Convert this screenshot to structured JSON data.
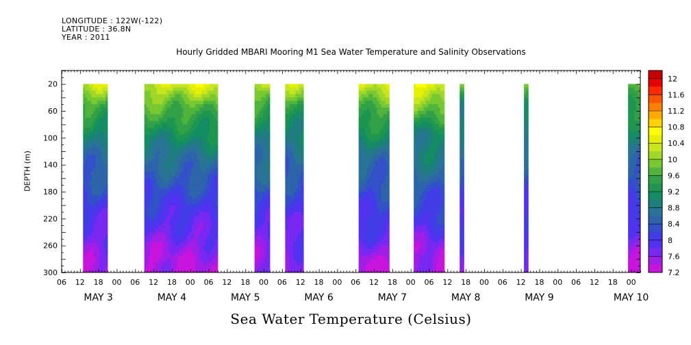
{
  "header": {
    "longitude": "LONGITUDE : 122W(-122)",
    "latitude": "LATITUDE : 36.8N",
    "year": "YEAR : 2011"
  },
  "chart_data": {
    "type": "heatmap",
    "title": "Hourly Gridded MBARI Mooring M1 Sea Water Temperature and Salinity Observations",
    "xlabel": "Sea Water Temperature (Celsius)",
    "ylabel": "DEPTH (m)",
    "x_range_hours": [
      0,
      189
    ],
    "x_hour_ticks": [
      "06",
      "12",
      "18",
      "00",
      "06",
      "12",
      "18",
      "00",
      "06",
      "12",
      "18",
      "00",
      "06",
      "12",
      "18",
      "00",
      "06",
      "12",
      "18",
      "00",
      "06",
      "12",
      "18",
      "00",
      "06",
      "12",
      "18",
      "00",
      "06",
      "12",
      "18",
      "00"
    ],
    "x_day_labels": [
      "MAY 3",
      "MAY 4",
      "MAY 5",
      "MAY 6",
      "MAY 7",
      "MAY 8",
      "MAY 9",
      "MAY 10"
    ],
    "y_range": [
      0,
      300
    ],
    "y_ticks": [
      20,
      60,
      100,
      140,
      180,
      220,
      260,
      300
    ],
    "colorbar": {
      "ticks": [
        "12",
        "11.6",
        "11.2",
        "10.8",
        "10.4",
        "10",
        "9.6",
        "9.2",
        "8.8",
        "8.4",
        "8",
        "7.6",
        "7.2"
      ],
      "colors": [
        "#c80000",
        "#e60000",
        "#ff2a00",
        "#ff5500",
        "#ff7f00",
        "#ffaa00",
        "#ffd200",
        "#ffff00",
        "#e6f000",
        "#c8e61e",
        "#a0d728",
        "#78c832",
        "#50b43c",
        "#32a046",
        "#1e9650",
        "#148c64",
        "#1e7d7d",
        "#287396",
        "#2d64aa",
        "#3250c8",
        "#413ce6",
        "#5032f0",
        "#7828f0",
        "#a01ee6",
        "#c814dc"
      ]
    },
    "segments": [
      {
        "x": [
          7,
          15
        ],
        "profile": [
          10.2,
          9.5,
          9.0,
          8.6,
          8.3,
          8.1,
          7.8,
          7.6,
          7.5
        ]
      },
      {
        "x": [
          27,
          51
        ],
        "profile": [
          10.3,
          9.6,
          9.1,
          8.7,
          8.35,
          8.1,
          7.8,
          7.55,
          7.4
        ]
      },
      {
        "x": [
          63,
          68
        ],
        "profile": [
          10.0,
          9.4,
          9.0,
          8.7,
          8.4,
          8.1,
          7.85,
          7.6,
          7.5
        ]
      },
      {
        "x": [
          73,
          79
        ],
        "profile": [
          10.1,
          9.4,
          8.95,
          8.6,
          8.3,
          8.05,
          7.85,
          7.7,
          7.6
        ]
      },
      {
        "x": [
          97,
          107
        ],
        "profile": [
          10.2,
          9.6,
          9.1,
          8.65,
          8.35,
          8.15,
          8.0,
          7.6,
          7.3
        ]
      },
      {
        "x": [
          115,
          125
        ],
        "profile": [
          10.5,
          9.7,
          9.0,
          8.8,
          8.5,
          8.2,
          7.9,
          7.55,
          7.4
        ]
      },
      {
        "x": [
          130,
          131.4
        ],
        "profile": [
          9.8,
          9.0,
          8.7,
          8.5,
          8.3,
          8.1,
          7.9,
          7.7,
          7.6
        ]
      },
      {
        "x": [
          151,
          152.4
        ],
        "profile": [
          10.0,
          9.1,
          8.8,
          8.5,
          8.3,
          8.1,
          7.9,
          7.7,
          7.6
        ]
      },
      {
        "x": [
          185,
          189
        ],
        "profile": [
          9.8,
          9.3,
          8.9,
          8.6,
          8.4,
          8.1,
          7.7,
          7.5,
          7.4
        ]
      }
    ]
  }
}
